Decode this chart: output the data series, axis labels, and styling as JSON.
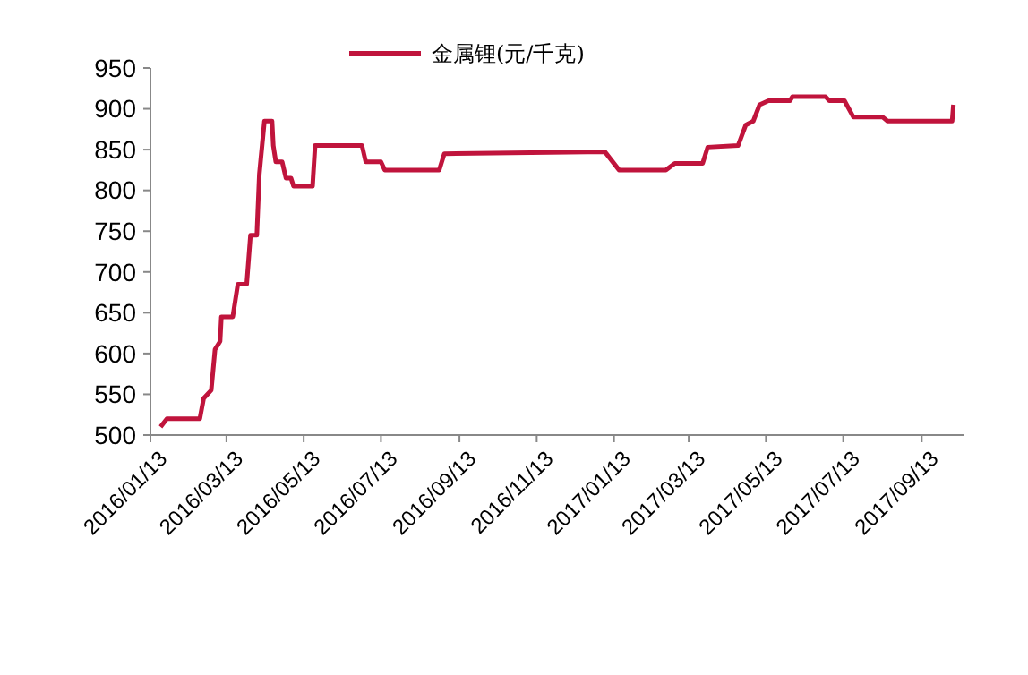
{
  "chart_data": {
    "type": "line",
    "xlim": [
      "2016-01-13",
      "2017-10-16"
    ],
    "xticks": [
      {
        "value": "2016-01-13",
        "label": "2016/01/13"
      },
      {
        "value": "2016-03-13",
        "label": "2016/03/13"
      },
      {
        "value": "2016-05-13",
        "label": "2016/05/13"
      },
      {
        "value": "2016-07-13",
        "label": "2016/07/13"
      },
      {
        "value": "2016-09-13",
        "label": "2016/09/13"
      },
      {
        "value": "2016-11-13",
        "label": "2016/11/13"
      },
      {
        "value": "2017-01-13",
        "label": "2017/01/13"
      },
      {
        "value": "2017-03-13",
        "label": "2017/03/13"
      },
      {
        "value": "2017-05-13",
        "label": "2017/05/13"
      },
      {
        "value": "2017-07-13",
        "label": "2017/07/13"
      },
      {
        "value": "2017-09-13",
        "label": "2017/09/13"
      }
    ],
    "ylim": [
      500,
      950
    ],
    "yticks": [
      500,
      550,
      600,
      650,
      700,
      750,
      800,
      850,
      900,
      950
    ],
    "grid": false,
    "legend": "top",
    "marker": "none",
    "line_style": "solid",
    "series": [
      {
        "name": "金属锂(元/千克)",
        "color": "#c0143c",
        "x": [
          "2016-01-21",
          "2016-01-26",
          "2016-02-21",
          "2016-02-24",
          "2016-03-01",
          "2016-03-04",
          "2016-03-08",
          "2016-03-09",
          "2016-03-18",
          "2016-03-22",
          "2016-03-29",
          "2016-04-01",
          "2016-04-06",
          "2016-04-08",
          "2016-04-12",
          "2016-04-18",
          "2016-04-19",
          "2016-04-21",
          "2016-04-26",
          "2016-04-29",
          "2016-05-03",
          "2016-05-05",
          "2016-05-20",
          "2016-05-22",
          "2016-06-28",
          "2016-07-01",
          "2016-07-13",
          "2016-07-16",
          "2016-08-28",
          "2016-09-01",
          "2016-12-23",
          "2017-01-06",
          "2017-01-17",
          "2017-02-23",
          "2017-03-02",
          "2017-03-24",
          "2017-03-28",
          "2017-04-21",
          "2017-04-27",
          "2017-05-03",
          "2017-05-08",
          "2017-05-15",
          "2017-06-01",
          "2017-06-03",
          "2017-06-29",
          "2017-07-02",
          "2017-07-14",
          "2017-07-21",
          "2017-08-13",
          "2017-08-17",
          "2017-10-07",
          "2017-10-08"
        ],
        "values": [
          510,
          520,
          520,
          545,
          555,
          605,
          615,
          645,
          645,
          685,
          685,
          745,
          745,
          820,
          885,
          885,
          855,
          835,
          835,
          815,
          815,
          805,
          805,
          855,
          855,
          835,
          835,
          825,
          825,
          845,
          847,
          847,
          825,
          825,
          833,
          833,
          853,
          855,
          880,
          885,
          905,
          910,
          910,
          915,
          915,
          910,
          910,
          890,
          890,
          885,
          885,
          905
        ]
      }
    ]
  }
}
